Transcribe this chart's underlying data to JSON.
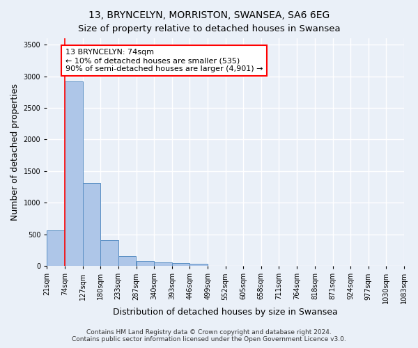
{
  "title_line1": "13, BRYNCELYN, MORRISTON, SWANSEA, SA6 6EG",
  "title_line2": "Size of property relative to detached houses in Swansea",
  "xlabel": "Distribution of detached houses by size in Swansea",
  "ylabel": "Number of detached properties",
  "footer_line1": "Contains HM Land Registry data © Crown copyright and database right 2024.",
  "footer_line2": "Contains public sector information licensed under the Open Government Licence v3.0.",
  "bins": [
    21,
    74,
    127,
    180,
    233,
    287,
    340,
    393,
    446,
    499,
    552,
    605,
    658,
    711,
    764,
    818,
    871,
    924,
    977,
    1030,
    1083
  ],
  "bar_heights": [
    560,
    2920,
    1310,
    410,
    155,
    80,
    55,
    48,
    40,
    0,
    0,
    0,
    0,
    0,
    0,
    0,
    0,
    0,
    0,
    0
  ],
  "bar_color": "#aec6e8",
  "bar_edge_color": "#5a8fc4",
  "annotation_text": "13 BRYNCELYN: 74sqm\n← 10% of detached houses are smaller (535)\n90% of semi-detached houses are larger (4,901) →",
  "annotation_box_color": "white",
  "annotation_box_edgecolor": "red",
  "vline_x": 74,
  "vline_color": "red",
  "ylim": [
    0,
    3600
  ],
  "yticks": [
    0,
    500,
    1000,
    1500,
    2000,
    2500,
    3000,
    3500
  ],
  "background_color": "#eaf0f8",
  "grid_color": "white",
  "title_fontsize": 10,
  "subtitle_fontsize": 9.5,
  "axis_label_fontsize": 9,
  "tick_fontsize": 7,
  "annotation_fontsize": 8,
  "footer_fontsize": 6.5
}
